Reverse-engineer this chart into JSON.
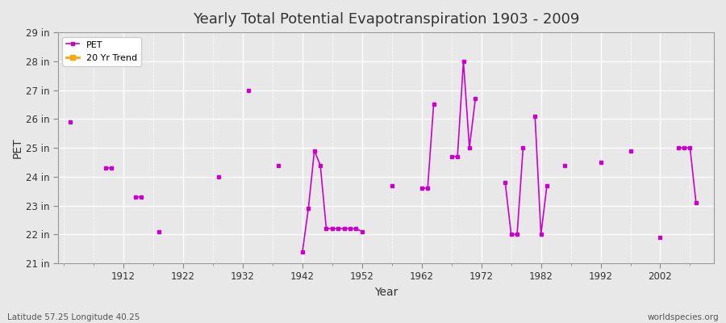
{
  "title": "Yearly Total Potential Evapotranspiration 1903 - 2009",
  "xlabel": "Year",
  "ylabel": "PET",
  "x_label_bottom": "Latitude 57.25 Longitude 40.25",
  "x_label_bottom_right": "worldspecies.org",
  "ylim": [
    21,
    29
  ],
  "ytick_labels": [
    "21 in",
    "22 in",
    "23 in",
    "24 in",
    "25 in",
    "26 in",
    "27 in",
    "28 in",
    "29 in"
  ],
  "ytick_values": [
    21,
    22,
    23,
    24,
    25,
    26,
    27,
    28,
    29
  ],
  "xlim": [
    1901,
    2011
  ],
  "xtick_values": [
    1912,
    1922,
    1932,
    1942,
    1952,
    1962,
    1972,
    1982,
    1992,
    2002
  ],
  "background_color": "#e8e8e8",
  "plot_bg_color": "#e8e8e8",
  "grid_color": "#ffffff",
  "pet_color": "#cc00cc",
  "trend_color": "#ffa500",
  "legend_items": [
    "PET",
    "20 Yr Trend"
  ],
  "segments": [
    {
      "years": [
        1903
      ],
      "values": [
        25.9
      ]
    },
    {
      "years": [
        1909,
        1910
      ],
      "values": [
        24.3,
        24.3
      ]
    },
    {
      "years": [
        1914,
        1915
      ],
      "values": [
        23.3,
        23.3
      ]
    },
    {
      "years": [
        1918
      ],
      "values": [
        22.1
      ]
    },
    {
      "years": [
        1928
      ],
      "values": [
        24.0
      ]
    },
    {
      "years": [
        1933
      ],
      "values": [
        27.0
      ]
    },
    {
      "years": [
        1938
      ],
      "values": [
        24.4
      ]
    },
    {
      "years": [
        1942,
        1943,
        1944,
        1945,
        1946,
        1947,
        1948,
        1949,
        1950,
        1951,
        1952
      ],
      "values": [
        21.4,
        22.9,
        24.9,
        24.4,
        22.2,
        22.2,
        22.2,
        22.2,
        22.2,
        22.2,
        22.1
      ]
    },
    {
      "years": [
        1957
      ],
      "values": [
        23.7
      ]
    },
    {
      "years": [
        1962,
        1963,
        1964
      ],
      "values": [
        23.6,
        23.6,
        26.5
      ]
    },
    {
      "years": [
        1967,
        1968,
        1969,
        1970,
        1971
      ],
      "values": [
        24.7,
        24.7,
        28.0,
        25.0,
        26.7
      ]
    },
    {
      "years": [
        1976,
        1977,
        1978,
        1979
      ],
      "values": [
        23.8,
        22.0,
        22.0,
        25.0
      ]
    },
    {
      "years": [
        1981,
        1982,
        1983
      ],
      "values": [
        26.1,
        22.0,
        23.7
      ]
    },
    {
      "years": [
        1986
      ],
      "values": [
        24.4
      ]
    },
    {
      "years": [
        1992
      ],
      "values": [
        24.5
      ]
    },
    {
      "years": [
        1997
      ],
      "values": [
        24.9
      ]
    },
    {
      "years": [
        2002
      ],
      "values": [
        21.9
      ]
    },
    {
      "years": [
        2005,
        2006,
        2007,
        2008
      ],
      "values": [
        25.0,
        25.0,
        25.0,
        23.1
      ]
    }
  ]
}
